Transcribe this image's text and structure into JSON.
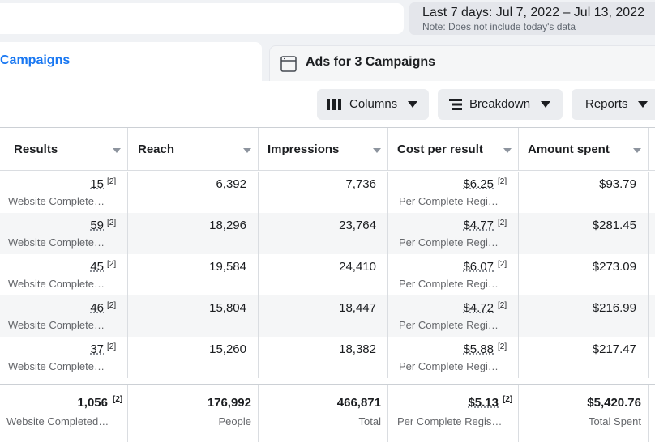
{
  "date_range": {
    "label": "Last 7 days: Jul 7, 2022 – Jul 13, 2022",
    "note": "Note: Does not include today's data"
  },
  "tabs": {
    "campaigns": "Campaigns",
    "ads": "Ads for 3 Campaigns"
  },
  "toolbar": {
    "columns": "Columns",
    "breakdown": "Breakdown",
    "reports": "Reports"
  },
  "columns": [
    "Results",
    "Reach",
    "Impressions",
    "Cost per result",
    "Amount spent"
  ],
  "rows": [
    {
      "results": "15",
      "results_ref": "[2]",
      "results_sub": "Website Complete…",
      "reach": "6,392",
      "impressions": "7,736",
      "cpr": "$6.25",
      "cpr_ref": "[2]",
      "cpr_sub": "Per Complete Regi…",
      "spent": "$93.79"
    },
    {
      "results": "59",
      "results_ref": "[2]",
      "results_sub": "Website Complete…",
      "reach": "18,296",
      "impressions": "23,764",
      "cpr": "$4.77",
      "cpr_ref": "[2]",
      "cpr_sub": "Per Complete Regi…",
      "spent": "$281.45"
    },
    {
      "results": "45",
      "results_ref": "[2]",
      "results_sub": "Website Complete…",
      "reach": "19,584",
      "impressions": "24,410",
      "cpr": "$6.07",
      "cpr_ref": "[2]",
      "cpr_sub": "Per Complete Regi…",
      "spent": "$273.09"
    },
    {
      "results": "46",
      "results_ref": "[2]",
      "results_sub": "Website Complete…",
      "reach": "15,804",
      "impressions": "18,447",
      "cpr": "$4.72",
      "cpr_ref": "[2]",
      "cpr_sub": "Per Complete Regi…",
      "spent": "$216.99"
    },
    {
      "results": "37",
      "results_ref": "[2]",
      "results_sub": "Website Complete…",
      "reach": "15,260",
      "impressions": "18,382",
      "cpr": "$5.88",
      "cpr_ref": "[2]",
      "cpr_sub": "Per Complete Regi…",
      "spent": "$217.47"
    }
  ],
  "totals": {
    "results": "1,056",
    "results_ref": "[2]",
    "results_sub": "Website Completed…",
    "reach": "176,992",
    "reach_sub": "People",
    "impressions": "466,871",
    "impressions_sub": "Total",
    "cpr": "$5.13",
    "cpr_ref": "[2]",
    "cpr_sub": "Per Complete Regis…",
    "spent": "$5,420.76",
    "spent_sub": "Total Spent"
  }
}
